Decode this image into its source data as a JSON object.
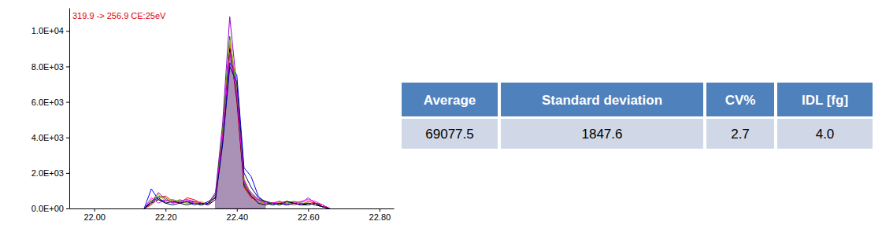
{
  "chart_data": {
    "type": "line",
    "annotation": "319.9 -> 256.9 CE:25eV",
    "x": [
      22.14,
      22.16,
      22.18,
      22.2,
      22.22,
      22.24,
      22.26,
      22.28,
      22.3,
      22.32,
      22.34,
      22.36,
      22.38,
      22.4,
      22.42,
      22.44,
      22.46,
      22.48,
      22.5,
      22.52,
      22.54,
      22.56,
      22.58,
      22.6,
      22.62,
      22.64,
      22.66
    ],
    "xlim": [
      21.93,
      22.84
    ],
    "xticks": [
      {
        "value": 22.0,
        "label": "22.00"
      },
      {
        "value": 22.2,
        "label": "22.20"
      },
      {
        "value": 22.4,
        "label": "22.40"
      },
      {
        "value": 22.6,
        "label": "22.60"
      },
      {
        "value": 22.8,
        "label": "22.80"
      }
    ],
    "ylim": [
      0,
      11300
    ],
    "yticks": [
      {
        "value": 0,
        "label": "0.0E+00"
      },
      {
        "value": 2000,
        "label": "2.0E+03"
      },
      {
        "value": 4000,
        "label": "4.0E+03"
      },
      {
        "value": 6000,
        "label": "6.0E+03"
      },
      {
        "value": 8000,
        "label": "8.0E+03"
      },
      {
        "value": 10000,
        "label": "1.0E+04"
      }
    ],
    "series": [
      {
        "type": "area",
        "color": "#8e6c9e",
        "values": [
          null,
          null,
          null,
          null,
          null,
          null,
          null,
          null,
          null,
          null,
          600,
          4000,
          9000,
          6500,
          1600,
          800,
          500,
          300,
          null,
          null,
          null,
          null,
          null,
          null,
          null,
          null,
          null
        ]
      },
      {
        "color": "#9400d3",
        "values": [
          0,
          300,
          900,
          500,
          300,
          400,
          500,
          400,
          300,
          300,
          900,
          4800,
          10800,
          6800,
          1600,
          700,
          400,
          300,
          300,
          400,
          300,
          200,
          300,
          600,
          300,
          200,
          0
        ]
      },
      {
        "color": "#0000ff",
        "values": [
          0,
          1100,
          500,
          400,
          500,
          300,
          400,
          300,
          200,
          400,
          600,
          3800,
          8200,
          7500,
          2300,
          1800,
          700,
          300,
          200,
          300,
          200,
          300,
          200,
          300,
          200,
          100,
          0
        ]
      },
      {
        "color": "#ff0000",
        "values": [
          0,
          200,
          600,
          700,
          400,
          300,
          600,
          500,
          300,
          200,
          700,
          4200,
          9200,
          6000,
          1200,
          600,
          500,
          400,
          300,
          300,
          400,
          300,
          200,
          400,
          300,
          200,
          0
        ]
      },
      {
        "color": "#008000",
        "values": [
          0,
          400,
          700,
          600,
          300,
          500,
          300,
          400,
          200,
          300,
          800,
          4400,
          9700,
          6500,
          1400,
          900,
          500,
          400,
          300,
          200,
          300,
          400,
          300,
          200,
          300,
          100,
          0
        ]
      },
      {
        "color": "#b5b500",
        "values": [
          0,
          500,
          800,
          400,
          500,
          400,
          300,
          300,
          400,
          200,
          500,
          4100,
          9500,
          6900,
          1700,
          800,
          400,
          300,
          200,
          400,
          300,
          200,
          400,
          300,
          200,
          100,
          0
        ]
      },
      {
        "color": "#000000",
        "values": [
          0,
          300,
          500,
          300,
          400,
          300,
          200,
          300,
          200,
          300,
          600,
          3900,
          9000,
          6200,
          1300,
          700,
          300,
          200,
          300,
          200,
          400,
          300,
          200,
          300,
          200,
          100,
          0
        ]
      },
      {
        "color": "#ff00ff",
        "values": [
          0,
          600,
          300,
          500,
          300,
          400,
          500,
          300,
          300,
          200,
          700,
          4000,
          8800,
          6400,
          1500,
          800,
          500,
          300,
          300,
          400,
          200,
          300,
          400,
          500,
          400,
          200,
          0
        ]
      },
      {
        "color": "#000080",
        "values": [
          0,
          400,
          600,
          300,
          200,
          300,
          400,
          200,
          300,
          200,
          500,
          3600,
          8000,
          7100,
          2000,
          1200,
          600,
          400,
          200,
          300,
          200,
          300,
          200,
          200,
          300,
          100,
          0
        ]
      }
    ]
  },
  "table": {
    "header": [
      "Average",
      "Standard deviation",
      "CV%",
      "IDL [fg]"
    ],
    "rows": [
      [
        "69077.5",
        "1847.6",
        "2.7",
        "4.0"
      ]
    ]
  }
}
